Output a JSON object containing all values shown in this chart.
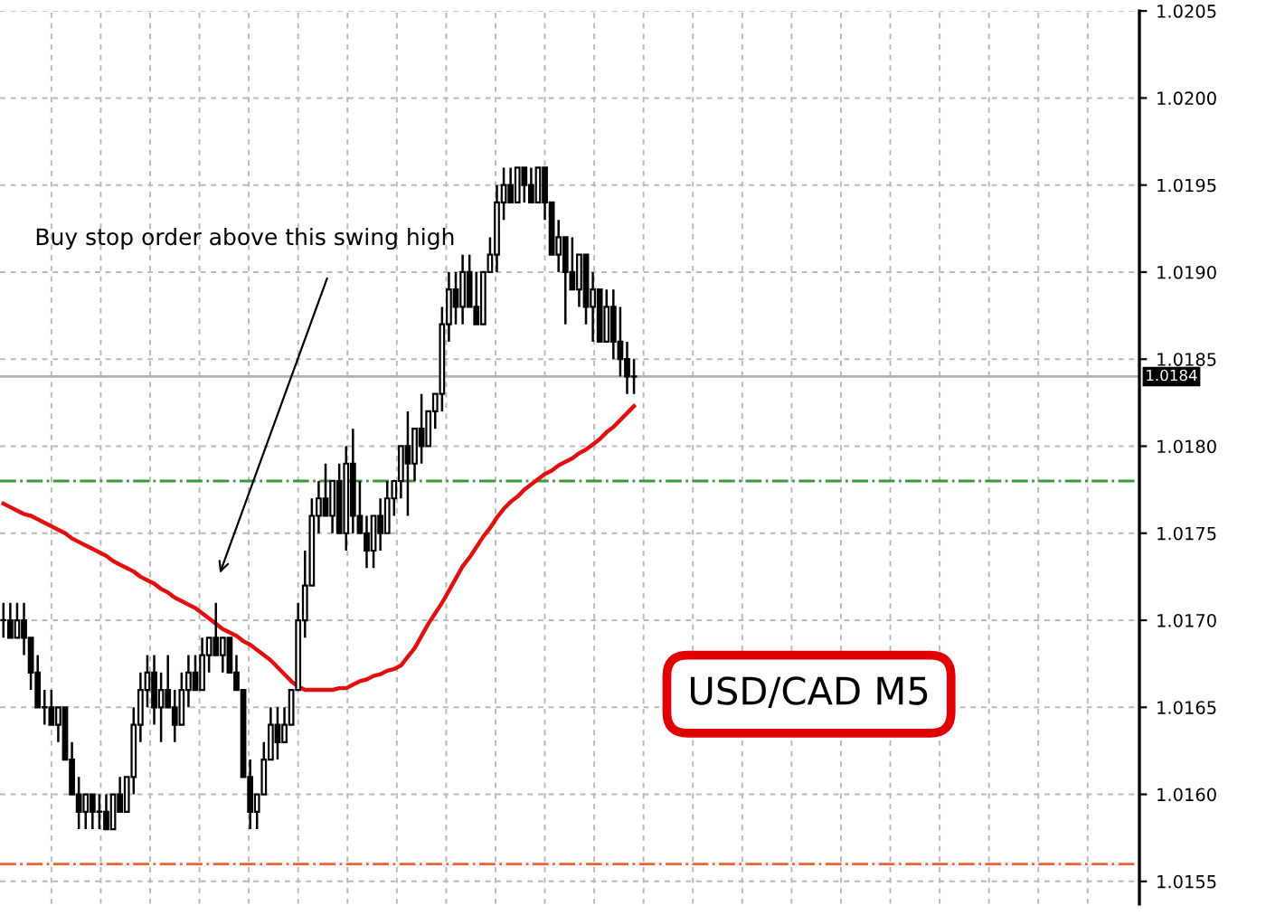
{
  "chart_data": {
    "type": "candlestick",
    "categories": [
      null,
      null,
      null,
      null,
      null,
      null,
      null,
      null,
      null,
      null,
      null,
      null,
      null,
      null,
      null,
      null,
      null,
      null,
      null,
      null,
      null,
      null,
      null,
      null,
      null,
      null,
      null,
      null,
      null,
      null,
      null,
      null,
      null,
      null,
      null,
      null,
      null,
      null,
      null,
      null,
      null,
      null,
      null,
      null,
      null,
      null,
      null,
      null,
      null,
      null,
      null,
      null,
      null,
      null,
      null,
      null,
      null,
      null,
      null,
      null,
      null,
      null,
      null,
      null,
      null,
      null,
      null,
      null,
      null,
      null,
      null,
      null,
      null,
      null,
      null,
      null,
      null,
      null,
      null,
      null,
      null,
      null,
      null,
      null,
      null,
      null,
      null,
      null,
      null,
      null,
      null,
      null,
      null
    ],
    "ohlc": [
      [
        1.017,
        1.0171,
        1.0169,
        1.017
      ],
      [
        1.017,
        1.0171,
        1.0169,
        1.0169
      ],
      [
        1.0169,
        1.0171,
        1.0169,
        1.017
      ],
      [
        1.017,
        1.0171,
        1.0168,
        1.0169
      ],
      [
        1.0169,
        1.0169,
        1.0166,
        1.0167
      ],
      [
        1.0167,
        1.0168,
        1.0165,
        1.0165
      ],
      [
        1.0165,
        1.0166,
        1.0164,
        1.0165
      ],
      [
        1.0165,
        1.0166,
        1.0164,
        1.0164
      ],
      [
        1.0164,
        1.0165,
        1.0163,
        1.0165
      ],
      [
        1.0165,
        1.0165,
        1.0162,
        1.0162
      ],
      [
        1.0162,
        1.0163,
        1.016,
        1.016
      ],
      [
        1.016,
        1.0161,
        1.0158,
        1.0159
      ],
      [
        1.0159,
        1.016,
        1.0158,
        1.016
      ],
      [
        1.016,
        1.016,
        1.0158,
        1.0159
      ],
      [
        1.0159,
        1.016,
        1.0158,
        1.0159
      ],
      [
        1.0159,
        1.016,
        1.0158,
        1.0158
      ],
      [
        1.0158,
        1.016,
        1.0158,
        1.016
      ],
      [
        1.016,
        1.0161,
        1.0159,
        1.0159
      ],
      [
        1.0159,
        1.0161,
        1.0159,
        1.0161
      ],
      [
        1.0161,
        1.0165,
        1.016,
        1.0164
      ],
      [
        1.0164,
        1.0167,
        1.0163,
        1.0166
      ],
      [
        1.0166,
        1.0168,
        1.0165,
        1.0167
      ],
      [
        1.0167,
        1.0168,
        1.0164,
        1.0165
      ],
      [
        1.0165,
        1.0167,
        1.0163,
        1.0166
      ],
      [
        1.0166,
        1.0168,
        1.0165,
        1.0165
      ],
      [
        1.0165,
        1.0166,
        1.0163,
        1.0164
      ],
      [
        1.0164,
        1.0167,
        1.0164,
        1.0166
      ],
      [
        1.0166,
        1.0168,
        1.0165,
        1.0167
      ],
      [
        1.0167,
        1.0168,
        1.0166,
        1.0166
      ],
      [
        1.0166,
        1.0169,
        1.0166,
        1.0168
      ],
      [
        1.0168,
        1.0169,
        1.0167,
        1.0169
      ],
      [
        1.0169,
        1.0171,
        1.0168,
        1.0168
      ],
      [
        1.0168,
        1.0169,
        1.0167,
        1.0169
      ],
      [
        1.0169,
        1.0169,
        1.0167,
        1.0167
      ],
      [
        1.0167,
        1.0168,
        1.0166,
        1.0166
      ],
      [
        1.0166,
        1.0166,
        1.0161,
        1.0161
      ],
      [
        1.0161,
        1.0162,
        1.0158,
        1.0159
      ],
      [
        1.0159,
        1.016,
        1.0158,
        1.016
      ],
      [
        1.016,
        1.0163,
        1.016,
        1.0162
      ],
      [
        1.0162,
        1.0165,
        1.0162,
        1.0164
      ],
      [
        1.0164,
        1.0165,
        1.0162,
        1.0163
      ],
      [
        1.0163,
        1.0165,
        1.0163,
        1.0164
      ],
      [
        1.0164,
        1.0166,
        1.0164,
        1.0166
      ],
      [
        1.0166,
        1.0171,
        1.0166,
        1.017
      ],
      [
        1.017,
        1.0174,
        1.0169,
        1.0172
      ],
      [
        1.0172,
        1.0177,
        1.0172,
        1.0176
      ],
      [
        1.0176,
        1.0178,
        1.0175,
        1.0177
      ],
      [
        1.0177,
        1.0179,
        1.0176,
        1.0176
      ],
      [
        1.0176,
        1.0178,
        1.0175,
        1.0178
      ],
      [
        1.0178,
        1.0179,
        1.0175,
        1.0175
      ],
      [
        1.0175,
        1.018,
        1.0174,
        1.0179
      ],
      [
        1.0179,
        1.0181,
        1.0175,
        1.0176
      ],
      [
        1.0176,
        1.0178,
        1.0175,
        1.0175
      ],
      [
        1.0175,
        1.0176,
        1.0173,
        1.0174
      ],
      [
        1.0174,
        1.0176,
        1.0173,
        1.0176
      ],
      [
        1.0176,
        1.0177,
        1.0174,
        1.0175
      ],
      [
        1.0175,
        1.0178,
        1.0175,
        1.0177
      ],
      [
        1.0177,
        1.0178,
        1.0176,
        1.0178
      ],
      [
        1.0178,
        1.018,
        1.0177,
        1.018
      ],
      [
        1.018,
        1.0182,
        1.0176,
        1.0179
      ],
      [
        1.0179,
        1.0181,
        1.0178,
        1.0181
      ],
      [
        1.0181,
        1.0183,
        1.0179,
        1.018
      ],
      [
        1.018,
        1.0182,
        1.018,
        1.0182
      ],
      [
        1.0182,
        1.0183,
        1.0181,
        1.0183
      ],
      [
        1.0183,
        1.0188,
        1.0182,
        1.0187
      ],
      [
        1.0187,
        1.019,
        1.0186,
        1.0189
      ],
      [
        1.0189,
        1.019,
        1.0187,
        1.0188
      ],
      [
        1.0188,
        1.0191,
        1.0187,
        1.019
      ],
      [
        1.019,
        1.0191,
        1.0188,
        1.0188
      ],
      [
        1.0188,
        1.019,
        1.0187,
        1.0187
      ],
      [
        1.0187,
        1.019,
        1.0187,
        1.019
      ],
      [
        1.019,
        1.0192,
        1.019,
        1.0191
      ],
      [
        1.0191,
        1.0195,
        1.019,
        1.0194
      ],
      [
        1.0194,
        1.0196,
        1.0193,
        1.0195
      ],
      [
        1.0195,
        1.0196,
        1.0194,
        1.0194
      ],
      [
        1.0194,
        1.0196,
        1.0194,
        1.0196
      ],
      [
        1.0196,
        1.0196,
        1.0194,
        1.0195
      ],
      [
        1.0195,
        1.0196,
        1.0194,
        1.0194
      ],
      [
        1.0194,
        1.0196,
        1.0194,
        1.0196
      ],
      [
        1.0196,
        1.0196,
        1.0193,
        1.0194
      ],
      [
        1.0194,
        1.0194,
        1.0191,
        1.0191
      ],
      [
        1.0191,
        1.0193,
        1.019,
        1.0192
      ],
      [
        1.0192,
        1.0192,
        1.0187,
        1.019
      ],
      [
        1.019,
        1.0192,
        1.0189,
        1.0189
      ],
      [
        1.0189,
        1.0191,
        1.0188,
        1.0191
      ],
      [
        1.0191,
        1.0191,
        1.0187,
        1.0188
      ],
      [
        1.0188,
        1.019,
        1.0186,
        1.0189
      ],
      [
        1.0189,
        1.0189,
        1.0186,
        1.0186
      ],
      [
        1.0186,
        1.0189,
        1.0186,
        1.0188
      ],
      [
        1.0188,
        1.0189,
        1.0185,
        1.0186
      ],
      [
        1.0186,
        1.0188,
        1.0184,
        1.0185
      ],
      [
        1.0185,
        1.0186,
        1.0183,
        1.0184
      ],
      [
        1.0184,
        1.0185,
        1.0183,
        1.0184
      ]
    ],
    "series": [
      {
        "type": "line",
        "color": "#e01010",
        "values": [
          1.01767,
          1.01765,
          1.01763,
          1.01761,
          1.0176,
          1.01758,
          1.01756,
          1.01754,
          1.01752,
          1.0175,
          1.01747,
          1.01745,
          1.01743,
          1.01741,
          1.01739,
          1.01737,
          1.01734,
          1.01732,
          1.0173,
          1.01728,
          1.01725,
          1.01723,
          1.01721,
          1.01718,
          1.01716,
          1.01713,
          1.01711,
          1.01709,
          1.01707,
          1.01704,
          1.01701,
          1.01698,
          1.01695,
          1.01693,
          1.01691,
          1.01688,
          1.01686,
          1.01683,
          1.0168,
          1.01677,
          1.01673,
          1.01669,
          1.01665,
          1.01662,
          1.0166,
          1.0166,
          1.0166,
          1.0166,
          1.0166,
          1.01661,
          1.01661,
          1.01663,
          1.01665,
          1.01666,
          1.01668,
          1.01669,
          1.01671,
          1.01672,
          1.01674,
          1.01679,
          1.01684,
          1.01691,
          1.01698,
          1.01704,
          1.0171,
          1.01717,
          1.01724,
          1.01731,
          1.01736,
          1.01742,
          1.01748,
          1.01753,
          1.01759,
          1.01764,
          1.01768,
          1.01771,
          1.01775,
          1.01778,
          1.01781,
          1.01784,
          1.01786,
          1.01789,
          1.01791,
          1.01793,
          1.01796,
          1.01798,
          1.01801,
          1.01804,
          1.01808,
          1.01811,
          1.01815,
          1.01819,
          1.01823
        ]
      }
    ],
    "ylim": [
      1.01537,
      1.0205
    ],
    "yticks": [
      {
        "value": 1.0155,
        "label": "1.0155"
      },
      {
        "value": 1.016,
        "label": "1.0160"
      },
      {
        "value": 1.0165,
        "label": "1.0165"
      },
      {
        "value": 1.017,
        "label": "1.0170"
      },
      {
        "value": 1.0175,
        "label": "1.0175"
      },
      {
        "value": 1.018,
        "label": "1.0180"
      },
      {
        "value": 1.0185,
        "label": "1.0185"
      },
      {
        "value": 1.019,
        "label": "1.0190"
      },
      {
        "value": 1.0195,
        "label": "1.0195"
      },
      {
        "value": 1.02,
        "label": "1.0200"
      },
      {
        "value": 1.0205,
        "label": "1.0205"
      }
    ],
    "tick_labels": "y",
    "grid": true,
    "ref_lines": [
      {
        "axis": "y",
        "value": 1.0184,
        "label": "1.0184",
        "color": "#b0b0b0",
        "line_style": "solid"
      },
      {
        "axis": "y",
        "value": 1.0178,
        "color": "#3a9a3a",
        "line_style": "dashdot"
      },
      {
        "axis": "y",
        "value": 1.0156,
        "color": "#f06030",
        "line_style": "dashdot"
      }
    ],
    "annotations": [
      "Buy stop order above this swing high",
      "USD/CAD M5"
    ]
  }
}
